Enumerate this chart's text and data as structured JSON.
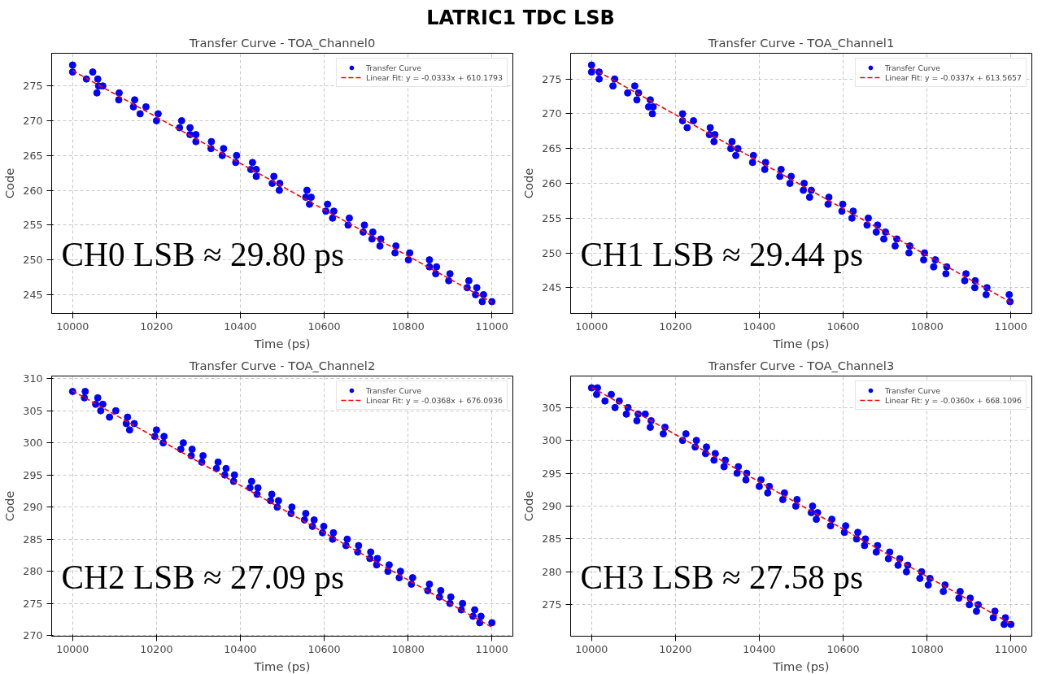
{
  "chart_data": [
    {
      "type": "scatter",
      "title": "Transfer Curve - TOA_Channel0",
      "xlabel": "Time (ps)",
      "ylabel": "Code",
      "annotations": [
        "CH0 LSB ≈ 29.80 ps",
        "LATRIC1 TDC LSB"
      ],
      "xlim": [
        9950,
        11050
      ],
      "ylim": [
        242.3,
        279.7
      ],
      "xticks": [
        10000,
        10200,
        10400,
        10600,
        10800,
        11000
      ],
      "yticks": [
        245,
        250,
        255,
        260,
        265,
        270,
        275
      ],
      "grid": true,
      "legend": "top right",
      "marker": "circle",
      "series": [
        {
          "name": "Transfer Curve",
          "color": "#0000ff",
          "x": [
            10000,
            10000,
            10048,
            10033,
            10060,
            10062,
            10072,
            10058,
            10111,
            10110,
            10148,
            10145,
            10175,
            10161,
            10204,
            10200,
            10260,
            10255,
            10280,
            10280,
            10294,
            10294,
            10331,
            10330,
            10360,
            10357,
            10391,
            10389,
            10429,
            10425,
            10438,
            10438,
            10480,
            10476,
            10494,
            10493,
            10559,
            10556,
            10569,
            10565,
            10608,
            10604,
            10623,
            10620,
            10660,
            10657,
            10696,
            10693,
            10716,
            10714,
            10735,
            10733,
            10771,
            10769,
            10804,
            10801,
            10851,
            10851,
            10868,
            10866,
            10900,
            10897,
            10945,
            10941,
            10964,
            10961,
            10980,
            10977,
            11000
          ],
          "values": [
            278,
            277,
            277,
            276,
            276,
            275,
            275,
            274,
            274,
            273,
            273,
            272,
            272,
            271,
            271,
            270,
            270,
            269,
            269,
            268,
            268,
            267,
            267,
            266,
            266,
            265,
            265,
            264,
            264,
            263,
            263,
            262,
            262,
            261,
            261,
            260,
            260,
            259,
            259,
            258,
            258,
            257,
            257,
            256,
            256,
            255,
            255,
            254,
            254,
            253,
            253,
            252,
            252,
            251,
            251,
            250,
            250,
            249,
            249,
            248,
            248,
            247,
            247,
            246,
            246,
            245,
            245,
            244,
            244
          ]
        },
        {
          "name": "Linear Fit: y = -0.0333x + 610.1793",
          "type": "line",
          "color": "#ff0000",
          "line_style": "dashed",
          "marker": "none",
          "x": [
            10000,
            11000
          ],
          "values": [
            277.2,
            243.9
          ]
        }
      ]
    },
    {
      "type": "scatter",
      "title": "Transfer Curve - TOA_Channel1",
      "xlabel": "Time (ps)",
      "ylabel": "Code",
      "annotations": [
        "CH1 LSB ≈ 29.44 ps"
      ],
      "xlim": [
        9950,
        11050
      ],
      "ylim": [
        241.3,
        278.7
      ],
      "xticks": [
        10000,
        10200,
        10400,
        10600,
        10800,
        11000
      ],
      "yticks": [
        245,
        250,
        255,
        260,
        265,
        270,
        275
      ],
      "grid": true,
      "legend": "top right",
      "marker": "circle",
      "series": [
        {
          "name": "Transfer Curve",
          "color": "#0000ff",
          "x": [
            10000,
            10000,
            10018,
            10018,
            10055,
            10051,
            10103,
            10086,
            10112,
            10108,
            10140,
            10136,
            10147,
            10145,
            10217,
            10217,
            10243,
            10228,
            10283,
            10281,
            10294,
            10292,
            10335,
            10332,
            10349,
            10344,
            10386,
            10384,
            10415,
            10413,
            10452,
            10449,
            10476,
            10473,
            10507,
            10505,
            10524,
            10520,
            10566,
            10564,
            10599,
            10597,
            10624,
            10621,
            10660,
            10657,
            10682,
            10679,
            10701,
            10697,
            10728,
            10724,
            10759,
            10757,
            10794,
            10792,
            10820,
            10816,
            10847,
            10845,
            10893,
            10890,
            10915,
            10914,
            10943,
            10941,
            10996,
            10998
          ],
          "values": [
            277,
            276,
            276,
            275,
            275,
            274,
            274,
            273,
            273,
            272,
            272,
            271,
            271,
            270,
            270,
            269,
            269,
            268,
            268,
            267,
            267,
            266,
            266,
            265,
            265,
            264,
            264,
            263,
            263,
            262,
            262,
            261,
            261,
            260,
            260,
            259,
            259,
            258,
            258,
            257,
            257,
            256,
            256,
            255,
            255,
            254,
            254,
            253,
            253,
            252,
            252,
            251,
            251,
            250,
            250,
            249,
            249,
            248,
            248,
            247,
            247,
            246,
            246,
            245,
            245,
            244,
            244,
            243
          ]
        },
        {
          "name": "Linear Fit: y = -0.0337x + 613.5657",
          "type": "line",
          "color": "#ff0000",
          "line_style": "dashed",
          "marker": "none",
          "x": [
            10000,
            11000
          ],
          "values": [
            276.6,
            242.9
          ]
        }
      ]
    },
    {
      "type": "scatter",
      "title": "Transfer Curve - TOA_Channel2",
      "xlabel": "Time (ps)",
      "ylabel": "Code",
      "annotations": [
        "CH2 LSB ≈ 27.09 ps"
      ],
      "xlim": [
        9950,
        11050
      ],
      "ylim": [
        269.9,
        310.4
      ],
      "xticks": [
        10000,
        10200,
        10400,
        10600,
        10800,
        11000
      ],
      "yticks": [
        270,
        275,
        280,
        285,
        290,
        295,
        300,
        305,
        310
      ],
      "grid": true,
      "legend": "top right",
      "marker": "circle",
      "series": [
        {
          "name": "Transfer Curve",
          "color": "#0000ff",
          "x": [
            10000,
            10030,
            10028,
            10060,
            10055,
            10072,
            10067,
            10103,
            10088,
            10131,
            10128,
            10147,
            10136,
            10200,
            10196,
            10218,
            10216,
            10264,
            10258,
            10285,
            10283,
            10311,
            10308,
            10347,
            10343,
            10366,
            10363,
            10386,
            10384,
            10427,
            10423,
            10442,
            10440,
            10475,
            10472,
            10491,
            10488,
            10523,
            10521,
            10556,
            10553,
            10576,
            10572,
            10599,
            10596,
            10622,
            10620,
            10655,
            10652,
            10682,
            10680,
            10711,
            10709,
            10727,
            10725,
            10755,
            10752,
            10782,
            10779,
            10811,
            10808,
            10851,
            10847,
            10878,
            10875,
            10902,
            10900,
            10930,
            10927,
            10959,
            10955,
            10974,
            10971,
            11000
          ],
          "values": [
            308,
            308,
            307,
            307,
            306,
            306,
            305,
            305,
            304,
            304,
            303,
            303,
            302,
            302,
            301,
            301,
            300,
            300,
            299,
            299,
            298,
            298,
            297,
            297,
            296,
            296,
            295,
            295,
            294,
            294,
            293,
            293,
            292,
            292,
            291,
            291,
            290,
            290,
            289,
            289,
            288,
            288,
            287,
            287,
            286,
            286,
            285,
            285,
            284,
            284,
            283,
            283,
            282,
            282,
            281,
            281,
            280,
            280,
            279,
            279,
            278,
            278,
            277,
            277,
            276,
            276,
            275,
            275,
            274,
            274,
            273,
            273,
            272,
            272
          ]
        },
        {
          "name": "Linear Fit: y = -0.0368x + 676.0936",
          "type": "line",
          "color": "#ff0000",
          "line_style": "dashed",
          "marker": "none",
          "x": [
            10000,
            11000
          ],
          "values": [
            308.1,
            271.3
          ]
        }
      ]
    },
    {
      "type": "scatter",
      "title": "Transfer Curve - TOA_Channel3",
      "xlabel": "Time (ps)",
      "ylabel": "Code",
      "annotations": [
        "CH3 LSB ≈ 27.58 ps"
      ],
      "xlim": [
        9950,
        11050
      ],
      "ylim": [
        270.2,
        309.8
      ],
      "xticks": [
        10000,
        10200,
        10400,
        10600,
        10800,
        11000
      ],
      "yticks": [
        275,
        280,
        285,
        290,
        295,
        300,
        305
      ],
      "grid": true,
      "legend": "top right",
      "marker": "circle",
      "series": [
        {
          "name": "Transfer Curve",
          "color": "#0000ff",
          "x": [
            10000,
            10014,
            10012,
            10047,
            10032,
            10066,
            10056,
            10087,
            10083,
            10111,
            10128,
            10108,
            10142,
            10140,
            10175,
            10171,
            10225,
            10217,
            10250,
            10247,
            10274,
            10272,
            10295,
            10292,
            10319,
            10316,
            10350,
            10347,
            10370,
            10368,
            10404,
            10400,
            10424,
            10420,
            10460,
            10456,
            10490,
            10487,
            10527,
            10524,
            10539,
            10536,
            10573,
            10570,
            10606,
            10603,
            10635,
            10632,
            10653,
            10651,
            10682,
            10679,
            10711,
            10708,
            10735,
            10731,
            10754,
            10751,
            10787,
            10783,
            10807,
            10803,
            10843,
            10839,
            10879,
            10876,
            10903,
            10901,
            10922,
            10918,
            10962,
            10958,
            10987,
            10984,
            11000
          ],
          "values": [
            308,
            308,
            307,
            307,
            306,
            306,
            305,
            305,
            304,
            304,
            304,
            303,
            303,
            302,
            302,
            301,
            301,
            300,
            300,
            299,
            299,
            298,
            298,
            297,
            297,
            296,
            296,
            295,
            295,
            294,
            294,
            293,
            293,
            292,
            292,
            291,
            291,
            290,
            290,
            289,
            289,
            288,
            288,
            287,
            287,
            286,
            286,
            285,
            285,
            284,
            284,
            283,
            283,
            282,
            282,
            281,
            281,
            280,
            280,
            279,
            279,
            278,
            278,
            277,
            277,
            276,
            276,
            275,
            275,
            274,
            274,
            273,
            273,
            272,
            272
          ]
        },
        {
          "name": "Linear Fit: y = -0.0360x + 668.1096",
          "type": "line",
          "color": "#ff0000",
          "line_style": "dashed",
          "marker": "none",
          "x": [
            10000,
            11000
          ],
          "values": [
            308.1,
            272.1
          ]
        }
      ]
    }
  ]
}
